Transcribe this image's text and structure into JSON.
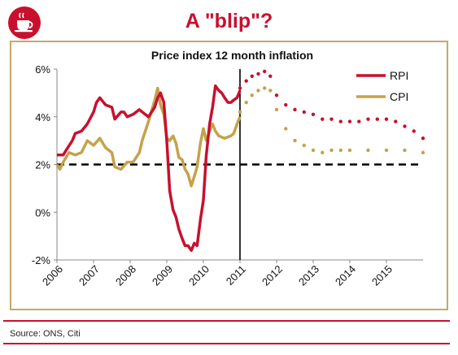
{
  "header": {
    "title": "A \"blip\"?",
    "logo_icon": "tea-cup-icon",
    "accent_color": "#c8102e"
  },
  "footer": {
    "source": "Source: ONS, Citi"
  },
  "chart_data": {
    "type": "line",
    "title": "Price index 12 month inflation",
    "xlabel": "",
    "ylabel": "",
    "x_tick_labels": [
      "2006",
      "2007",
      "2008",
      "2009",
      "2010",
      "2011",
      "2012",
      "2013",
      "2014",
      "2015"
    ],
    "y_tick_labels": [
      "6%",
      "4%",
      "2%",
      "0%",
      "-2%"
    ],
    "xlim": [
      2006,
      2016
    ],
    "ylim": [
      -2,
      6
    ],
    "grid": false,
    "legend": "top-right",
    "reference_line": {
      "y": 2,
      "style": "dashed",
      "color": "#000000"
    },
    "forecast_start": 2011.0,
    "series": [
      {
        "name": "RPI",
        "color": "#c8102e",
        "actual": [
          [
            2006.0,
            2.4
          ],
          [
            2006.17,
            2.4
          ],
          [
            2006.25,
            2.6
          ],
          [
            2006.42,
            3.0
          ],
          [
            2006.5,
            3.3
          ],
          [
            2006.67,
            3.4
          ],
          [
            2006.83,
            3.7
          ],
          [
            2007.0,
            4.2
          ],
          [
            2007.08,
            4.6
          ],
          [
            2007.17,
            4.8
          ],
          [
            2007.33,
            4.5
          ],
          [
            2007.5,
            4.4
          ],
          [
            2007.58,
            3.9
          ],
          [
            2007.75,
            4.2
          ],
          [
            2007.83,
            4.2
          ],
          [
            2007.92,
            4.0
          ],
          [
            2008.08,
            4.1
          ],
          [
            2008.25,
            4.3
          ],
          [
            2008.33,
            4.2
          ],
          [
            2008.5,
            4.0
          ],
          [
            2008.67,
            4.4
          ],
          [
            2008.75,
            4.8
          ],
          [
            2008.83,
            5.0
          ],
          [
            2008.92,
            4.6
          ],
          [
            2009.0,
            3.0
          ],
          [
            2009.08,
            0.9
          ],
          [
            2009.17,
            0.1
          ],
          [
            2009.25,
            -0.2
          ],
          [
            2009.33,
            -0.7
          ],
          [
            2009.42,
            -1.1
          ],
          [
            2009.5,
            -1.4
          ],
          [
            2009.58,
            -1.4
          ],
          [
            2009.67,
            -1.6
          ],
          [
            2009.75,
            -1.3
          ],
          [
            2009.83,
            -1.4
          ],
          [
            2009.92,
            -0.3
          ],
          [
            2010.0,
            0.5
          ],
          [
            2010.08,
            2.4
          ],
          [
            2010.17,
            3.7
          ],
          [
            2010.25,
            4.4
          ],
          [
            2010.33,
            5.3
          ],
          [
            2010.42,
            5.1
          ],
          [
            2010.5,
            5.0
          ],
          [
            2010.58,
            4.8
          ],
          [
            2010.67,
            4.6
          ],
          [
            2010.75,
            4.6
          ],
          [
            2010.83,
            4.7
          ],
          [
            2010.92,
            4.8
          ],
          [
            2011.0,
            5.1
          ]
        ],
        "forecast": [
          [
            2011.0,
            5.2
          ],
          [
            2011.17,
            5.5
          ],
          [
            2011.33,
            5.7
          ],
          [
            2011.5,
            5.8
          ],
          [
            2011.67,
            5.9
          ],
          [
            2011.83,
            5.7
          ],
          [
            2012.0,
            4.9
          ],
          [
            2012.25,
            4.5
          ],
          [
            2012.5,
            4.3
          ],
          [
            2012.75,
            4.2
          ],
          [
            2013.0,
            4.1
          ],
          [
            2013.25,
            3.9
          ],
          [
            2013.5,
            3.9
          ],
          [
            2013.75,
            3.8
          ],
          [
            2014.0,
            3.8
          ],
          [
            2014.25,
            3.8
          ],
          [
            2014.5,
            3.9
          ],
          [
            2014.75,
            3.9
          ],
          [
            2015.0,
            3.9
          ],
          [
            2015.25,
            3.8
          ],
          [
            2015.5,
            3.6
          ],
          [
            2015.75,
            3.4
          ],
          [
            2016.0,
            3.1
          ]
        ]
      },
      {
        "name": "CPI",
        "color": "#c5a24a",
        "actual": [
          [
            2006.0,
            2.0
          ],
          [
            2006.08,
            1.8
          ],
          [
            2006.17,
            2.1
          ],
          [
            2006.33,
            2.5
          ],
          [
            2006.5,
            2.4
          ],
          [
            2006.67,
            2.5
          ],
          [
            2006.83,
            3.0
          ],
          [
            2007.0,
            2.8
          ],
          [
            2007.17,
            3.1
          ],
          [
            2007.33,
            2.7
          ],
          [
            2007.5,
            2.5
          ],
          [
            2007.58,
            1.9
          ],
          [
            2007.75,
            1.8
          ],
          [
            2007.92,
            2.1
          ],
          [
            2008.08,
            2.1
          ],
          [
            2008.25,
            2.5
          ],
          [
            2008.33,
            3.0
          ],
          [
            2008.5,
            3.8
          ],
          [
            2008.67,
            4.7
          ],
          [
            2008.75,
            5.2
          ],
          [
            2008.83,
            4.5
          ],
          [
            2008.92,
            4.1
          ],
          [
            2009.0,
            3.1
          ],
          [
            2009.08,
            3.0
          ],
          [
            2009.17,
            3.2
          ],
          [
            2009.25,
            2.9
          ],
          [
            2009.33,
            2.3
          ],
          [
            2009.42,
            2.2
          ],
          [
            2009.5,
            1.8
          ],
          [
            2009.58,
            1.6
          ],
          [
            2009.67,
            1.1
          ],
          [
            2009.75,
            1.5
          ],
          [
            2009.83,
            1.9
          ],
          [
            2009.92,
            2.9
          ],
          [
            2010.0,
            3.5
          ],
          [
            2010.08,
            3.0
          ],
          [
            2010.17,
            3.4
          ],
          [
            2010.25,
            3.7
          ],
          [
            2010.33,
            3.4
          ],
          [
            2010.42,
            3.2
          ],
          [
            2010.58,
            3.1
          ],
          [
            2010.75,
            3.2
          ],
          [
            2010.83,
            3.3
          ],
          [
            2010.92,
            3.7
          ],
          [
            2011.0,
            4.0
          ]
        ],
        "forecast": [
          [
            2011.0,
            4.2
          ],
          [
            2011.17,
            4.6
          ],
          [
            2011.33,
            4.9
          ],
          [
            2011.5,
            5.1
          ],
          [
            2011.67,
            5.2
          ],
          [
            2011.83,
            5.1
          ],
          [
            2012.0,
            4.3
          ],
          [
            2012.25,
            3.5
          ],
          [
            2012.5,
            3.0
          ],
          [
            2012.75,
            2.8
          ],
          [
            2013.0,
            2.6
          ],
          [
            2013.25,
            2.5
          ],
          [
            2013.5,
            2.6
          ],
          [
            2013.75,
            2.6
          ],
          [
            2014.0,
            2.6
          ],
          [
            2014.5,
            2.6
          ],
          [
            2015.0,
            2.6
          ],
          [
            2015.5,
            2.6
          ],
          [
            2016.0,
            2.5
          ]
        ]
      }
    ]
  }
}
